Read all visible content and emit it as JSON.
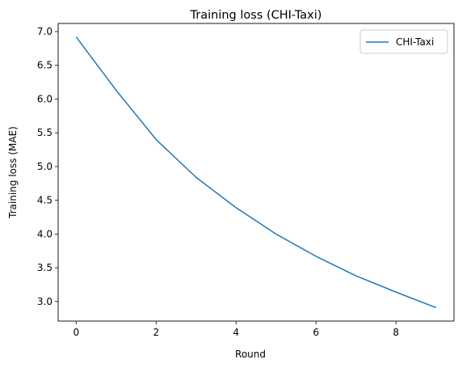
{
  "chart_data": {
    "type": "line",
    "title": "Training loss (CHI-Taxi)",
    "xlabel": "Round",
    "ylabel": "Training loss (MAE)",
    "xlim": [
      -0.45,
      9.45
    ],
    "ylim": [
      2.71,
      7.12
    ],
    "xticks": [
      0,
      2,
      4,
      6,
      8
    ],
    "xtick_labels": [
      "0",
      "2",
      "4",
      "6",
      "8"
    ],
    "yticks": [
      3.0,
      3.5,
      4.0,
      4.5,
      5.0,
      5.5,
      6.0,
      6.5,
      7.0
    ],
    "ytick_labels": [
      "3.0",
      "3.5",
      "4.0",
      "4.5",
      "5.0",
      "5.5",
      "6.0",
      "6.5",
      "7.0"
    ],
    "grid": false,
    "legend_position": "top-right",
    "series": [
      {
        "name": "CHI-Taxi",
        "color": "#1f77b4",
        "x": [
          0,
          1,
          2,
          3,
          4,
          5,
          6,
          7,
          8,
          9
        ],
        "y": [
          6.92,
          6.13,
          5.4,
          4.84,
          4.39,
          4.0,
          3.67,
          3.38,
          3.14,
          2.91
        ]
      }
    ]
  }
}
